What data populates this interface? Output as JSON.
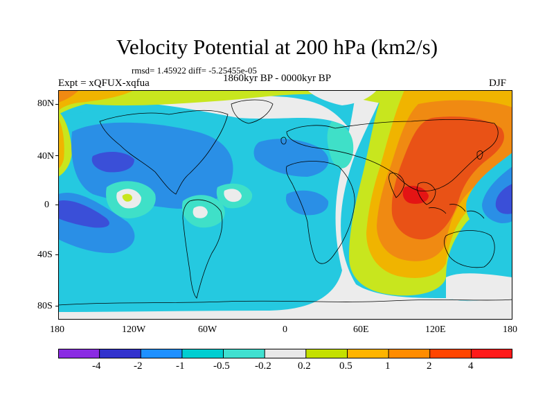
{
  "title": "Velocity Potential at 200 hPa (km2/s)",
  "stats": "rmsd= 1.45922 diff= -5.25455e-05",
  "expt": "Expt = xQFUX-xqfua",
  "period": "1860kyr BP - 0000kyr BP",
  "season": "DJF",
  "lat_labels": [
    "80N",
    "40N",
    "0",
    "40S",
    "80S"
  ],
  "lon_labels": [
    "180",
    "120W",
    "60W",
    "0",
    "60E",
    "120E",
    "180"
  ],
  "colorbar": {
    "labels": [
      "-4",
      "-2",
      "-1",
      "-0.5",
      "-0.2",
      "0.2",
      "0.5",
      "1",
      "2",
      "4"
    ],
    "colors": [
      "#8a2be2",
      "#3232cd",
      "#1e90ff",
      "#00ced1",
      "#40e0d0",
      "#e8e8e8",
      "#c4e000",
      "#ffb400",
      "#ff8c00",
      "#ff4500",
      "#ff1a1a"
    ]
  },
  "palette": {
    "blue_dark": "#3a4fd8",
    "blue": "#2a8fe6",
    "cyan": "#25c9e0",
    "teal": "#3fe0c8",
    "grey": "#ececec",
    "yellow_green": "#c8e61e",
    "gold": "#f0b400",
    "orange": "#f08a12",
    "orange_red": "#e95216",
    "red": "#e41414"
  }
}
